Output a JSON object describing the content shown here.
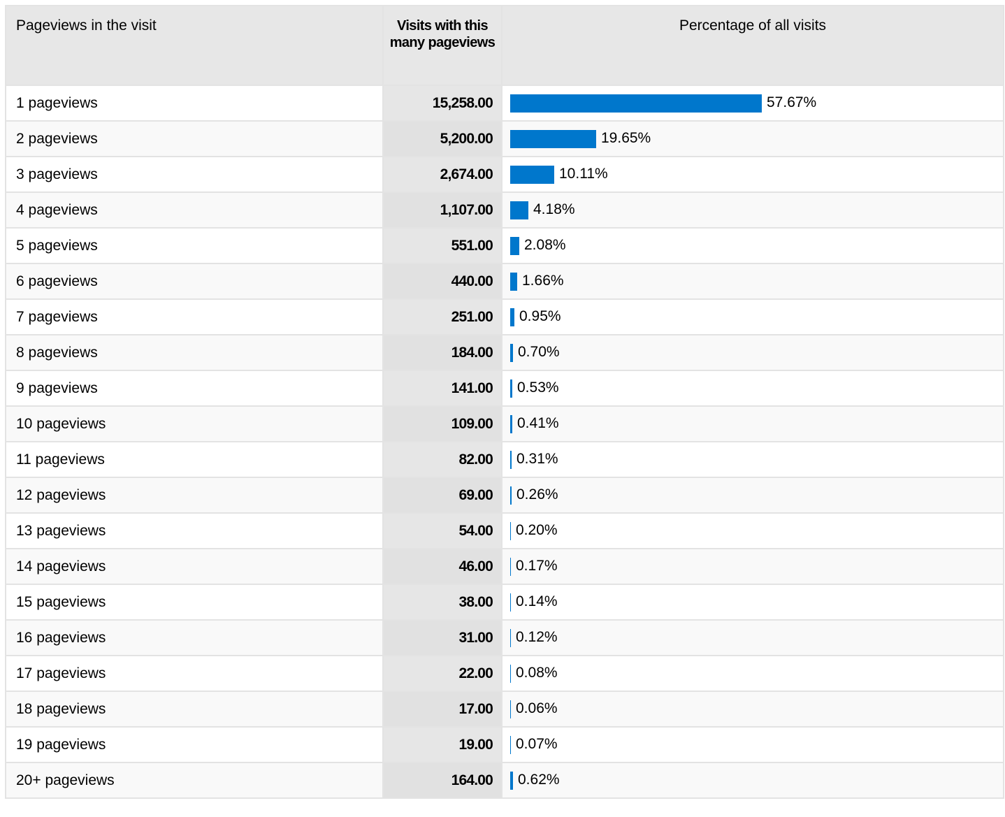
{
  "table": {
    "headers": {
      "label": "Pageviews in the visit",
      "visits": "Visits with this many pageviews",
      "pct": "Percentage of all visits"
    },
    "bar_color": "#0077cc",
    "rows": [
      {
        "label": "1 pageviews",
        "visits": "15,258.00",
        "pct_text": "57.67%",
        "pct": 57.67
      },
      {
        "label": "2 pageviews",
        "visits": "5,200.00",
        "pct_text": "19.65%",
        "pct": 19.65
      },
      {
        "label": "3 pageviews",
        "visits": "2,674.00",
        "pct_text": "10.11%",
        "pct": 10.11
      },
      {
        "label": "4 pageviews",
        "visits": "1,107.00",
        "pct_text": "4.18%",
        "pct": 4.18
      },
      {
        "label": "5 pageviews",
        "visits": "551.00",
        "pct_text": "2.08%",
        "pct": 2.08
      },
      {
        "label": "6 pageviews",
        "visits": "440.00",
        "pct_text": "1.66%",
        "pct": 1.66
      },
      {
        "label": "7 pageviews",
        "visits": "251.00",
        "pct_text": "0.95%",
        "pct": 0.95
      },
      {
        "label": "8 pageviews",
        "visits": "184.00",
        "pct_text": "0.70%",
        "pct": 0.7
      },
      {
        "label": "9 pageviews",
        "visits": "141.00",
        "pct_text": "0.53%",
        "pct": 0.53
      },
      {
        "label": "10 pageviews",
        "visits": "109.00",
        "pct_text": "0.41%",
        "pct": 0.41
      },
      {
        "label": "11 pageviews",
        "visits": "82.00",
        "pct_text": "0.31%",
        "pct": 0.31
      },
      {
        "label": "12 pageviews",
        "visits": "69.00",
        "pct_text": "0.26%",
        "pct": 0.26
      },
      {
        "label": "13 pageviews",
        "visits": "54.00",
        "pct_text": "0.20%",
        "pct": 0.2
      },
      {
        "label": "14 pageviews",
        "visits": "46.00",
        "pct_text": "0.17%",
        "pct": 0.17
      },
      {
        "label": "15 pageviews",
        "visits": "38.00",
        "pct_text": "0.14%",
        "pct": 0.14
      },
      {
        "label": "16 pageviews",
        "visits": "31.00",
        "pct_text": "0.12%",
        "pct": 0.12
      },
      {
        "label": "17 pageviews",
        "visits": "22.00",
        "pct_text": "0.08%",
        "pct": 0.08
      },
      {
        "label": "18 pageviews",
        "visits": "17.00",
        "pct_text": "0.06%",
        "pct": 0.06
      },
      {
        "label": "19 pageviews",
        "visits": "19.00",
        "pct_text": "0.07%",
        "pct": 0.07
      },
      {
        "label": "20+ pageviews",
        "visits": "164.00",
        "pct_text": "0.62%",
        "pct": 0.62
      }
    ]
  }
}
